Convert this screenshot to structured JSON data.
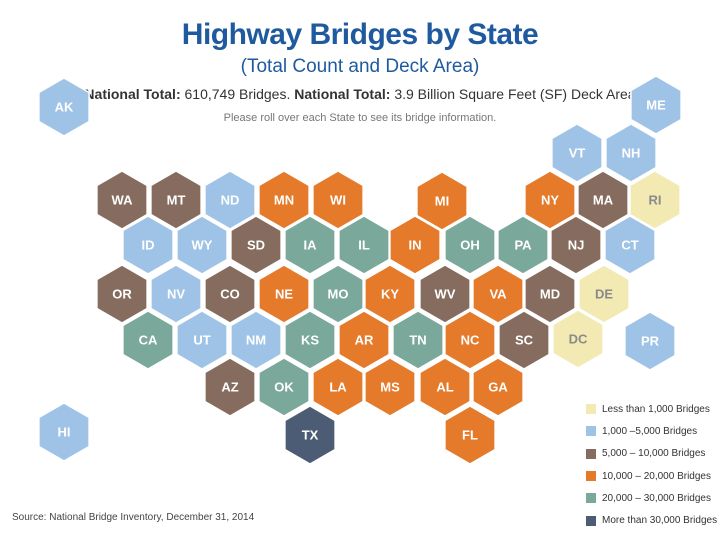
{
  "title": "Highway Bridges by State",
  "subtitle": "(Total Count and Deck Area)",
  "totals": {
    "count_label": "National Total:",
    "count_value": "610,749 Bridges.",
    "area_label": "National Total:",
    "area_value": "3.9 Billion Square Feet (SF) Deck Area"
  },
  "hint": "Please roll over each State to see its bridge information.",
  "source": "Source: National Bridge Inventory, December 31, 2014",
  "colors": {
    "c1": "#f2eab2",
    "c2": "#9fc3e6",
    "c3": "#866c5f",
    "c4": "#e47a2a",
    "c5": "#7aa89a",
    "c6": "#4b5c74"
  },
  "legend": [
    {
      "class": "c1",
      "label": "Less than 1,000 Bridges"
    },
    {
      "class": "c2",
      "label": "1,000 –5,000 Bridges"
    },
    {
      "class": "c3",
      "label": "5,000 – 10,000 Bridges"
    },
    {
      "class": "c4",
      "label": "10,000 – 20,000 Bridges"
    },
    {
      "class": "c5",
      "label": "20,000 – 30,000 Bridges"
    },
    {
      "class": "c6",
      "label": "More than 30,000 Bridges"
    }
  ],
  "states": [
    {
      "abbr": "AK",
      "class": "c2"
    },
    {
      "abbr": "HI",
      "class": "c2"
    },
    {
      "abbr": "ME",
      "class": "c2"
    },
    {
      "abbr": "PR",
      "class": "c2"
    },
    {
      "abbr": "VT",
      "class": "c2"
    },
    {
      "abbr": "NH",
      "class": "c2"
    },
    {
      "abbr": "WA",
      "class": "c3"
    },
    {
      "abbr": "MT",
      "class": "c3"
    },
    {
      "abbr": "ND",
      "class": "c2"
    },
    {
      "abbr": "MN",
      "class": "c4"
    },
    {
      "abbr": "WI",
      "class": "c4"
    },
    {
      "abbr": "MI",
      "class": "c4"
    },
    {
      "abbr": "NY",
      "class": "c4"
    },
    {
      "abbr": "MA",
      "class": "c3"
    },
    {
      "abbr": "RI",
      "class": "c1"
    },
    {
      "abbr": "ID",
      "class": "c2"
    },
    {
      "abbr": "WY",
      "class": "c2"
    },
    {
      "abbr": "SD",
      "class": "c3"
    },
    {
      "abbr": "IA",
      "class": "c5"
    },
    {
      "abbr": "IL",
      "class": "c5"
    },
    {
      "abbr": "IN",
      "class": "c4"
    },
    {
      "abbr": "OH",
      "class": "c5"
    },
    {
      "abbr": "PA",
      "class": "c5"
    },
    {
      "abbr": "NJ",
      "class": "c3"
    },
    {
      "abbr": "CT",
      "class": "c2"
    },
    {
      "abbr": "OR",
      "class": "c3"
    },
    {
      "abbr": "NV",
      "class": "c2"
    },
    {
      "abbr": "CO",
      "class": "c3"
    },
    {
      "abbr": "NE",
      "class": "c4"
    },
    {
      "abbr": "MO",
      "class": "c5"
    },
    {
      "abbr": "KY",
      "class": "c4"
    },
    {
      "abbr": "WV",
      "class": "c3"
    },
    {
      "abbr": "VA",
      "class": "c4"
    },
    {
      "abbr": "MD",
      "class": "c3"
    },
    {
      "abbr": "DE",
      "class": "c1"
    },
    {
      "abbr": "CA",
      "class": "c5"
    },
    {
      "abbr": "UT",
      "class": "c2"
    },
    {
      "abbr": "NM",
      "class": "c2"
    },
    {
      "abbr": "KS",
      "class": "c5"
    },
    {
      "abbr": "AR",
      "class": "c4"
    },
    {
      "abbr": "TN",
      "class": "c5"
    },
    {
      "abbr": "NC",
      "class": "c4"
    },
    {
      "abbr": "SC",
      "class": "c3"
    },
    {
      "abbr": "DC",
      "class": "c1"
    },
    {
      "abbr": "AZ",
      "class": "c3"
    },
    {
      "abbr": "OK",
      "class": "c5"
    },
    {
      "abbr": "LA",
      "class": "c4"
    },
    {
      "abbr": "MS",
      "class": "c4"
    },
    {
      "abbr": "AL",
      "class": "c4"
    },
    {
      "abbr": "GA",
      "class": "c4"
    },
    {
      "abbr": "TX",
      "class": "c6"
    },
    {
      "abbr": "FL",
      "class": "c4"
    }
  ]
}
